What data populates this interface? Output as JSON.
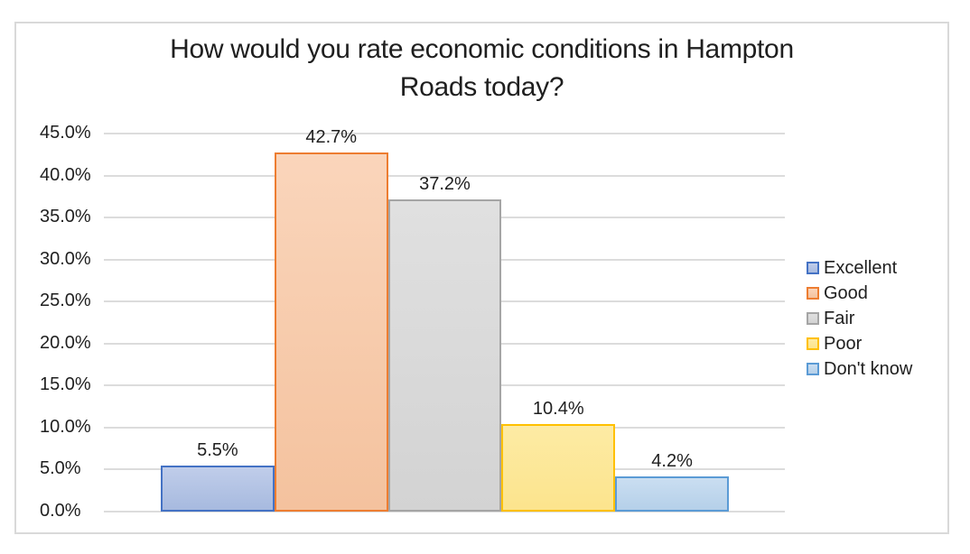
{
  "chart_data": {
    "type": "bar",
    "title": "How would you rate economic conditions in Hampton Roads today?",
    "title_lines": [
      "How would you rate economic conditions in Hampton",
      "Roads today?"
    ],
    "categories": [
      "Excellent",
      "Good",
      "Fair",
      "Poor",
      "Don't know"
    ],
    "values": [
      5.5,
      42.7,
      37.2,
      10.4,
      4.2
    ],
    "value_labels": [
      "5.5%",
      "42.7%",
      "37.2%",
      "10.4%",
      "4.2%"
    ],
    "ylabel": "",
    "xlabel": "",
    "ylim": [
      0,
      45
    ],
    "ytick_step": 5,
    "ytick_labels": [
      "0.0%",
      "5.0%",
      "10.0%",
      "15.0%",
      "20.0%",
      "25.0%",
      "30.0%",
      "35.0%",
      "40.0%",
      "45.0%"
    ],
    "grid": true,
    "legend_position": "right",
    "legend_entries": [
      "Excellent",
      "Good",
      "Fair",
      "Poor",
      "Don't know"
    ],
    "series_styles": [
      {
        "name": "Excellent",
        "fill_top": "#C0CDEA",
        "fill_bottom": "#A7BADF",
        "border": "#4472C4"
      },
      {
        "name": "Good",
        "fill_top": "#FAD5BB",
        "fill_bottom": "#F4C29E",
        "border": "#ED7D31"
      },
      {
        "name": "Fair",
        "fill_top": "#E0E0E0",
        "fill_bottom": "#D3D3D3",
        "border": "#A5A5A5"
      },
      {
        "name": "Poor",
        "fill_top": "#FDEBA4",
        "fill_bottom": "#FCE48D",
        "border": "#FFC000"
      },
      {
        "name": "Don't know",
        "fill_top": "#CADEF1",
        "fill_bottom": "#B5D0E9",
        "border": "#5B9BD5"
      }
    ],
    "colors": {
      "gridline": "#DCDCDC",
      "chart_border": "#D9D9D9",
      "text": "#1F1F1F",
      "background": "#FFFFFF"
    }
  }
}
